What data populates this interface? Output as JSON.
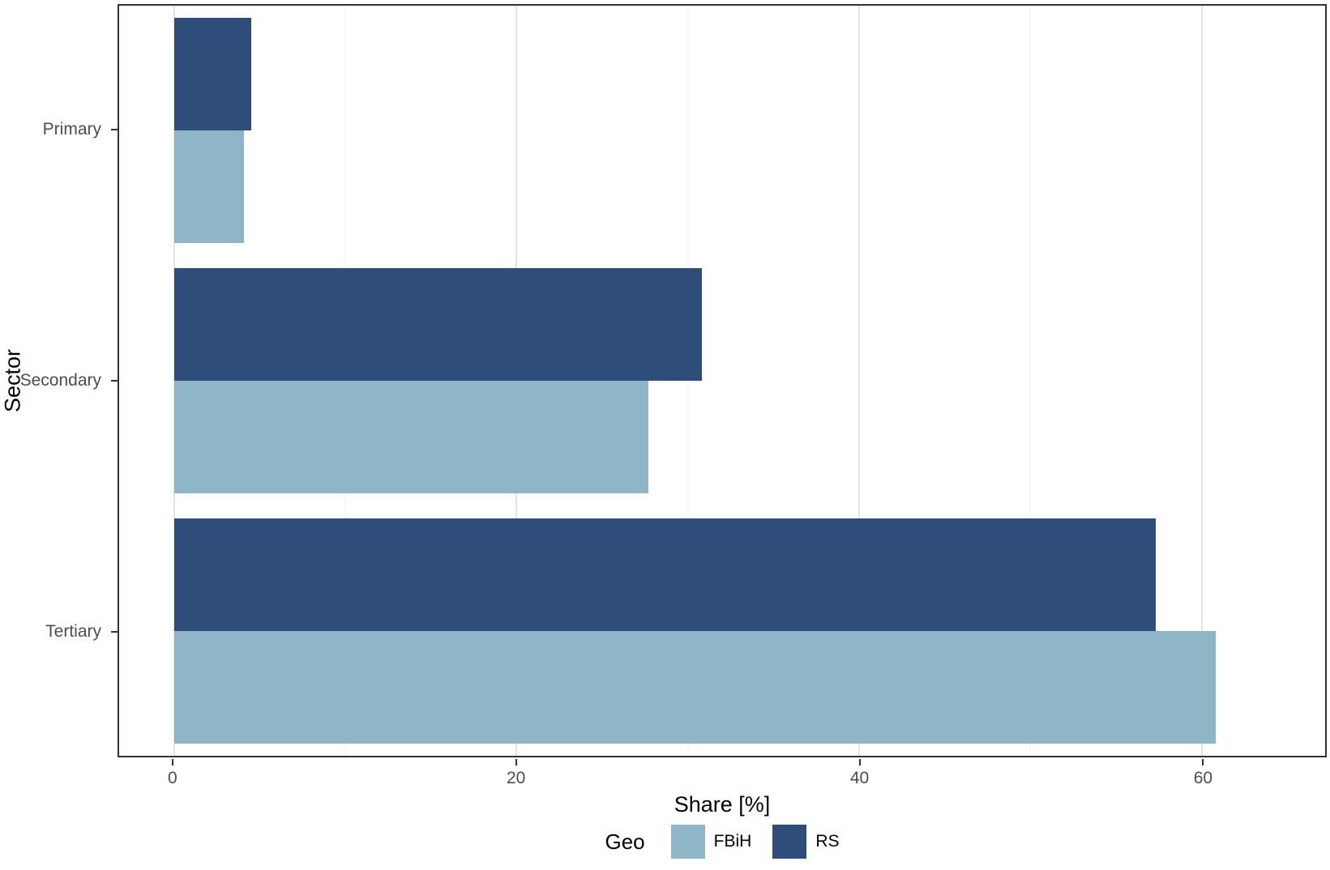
{
  "chart_data": {
    "type": "bar",
    "orientation": "horizontal",
    "title": "",
    "xlabel": "Share [%]",
    "ylabel": "Sector",
    "categories": [
      "Primary",
      "Secondary",
      "Tertiary"
    ],
    "series": [
      {
        "name": "RS",
        "color": "#2E4D7B",
        "values": [
          4.5,
          30.8,
          57.3
        ]
      },
      {
        "name": "FBiH",
        "color": "#8EB6C6",
        "values": [
          4.1,
          27.7,
          60.8
        ]
      }
    ],
    "series_order_top_to_bottom": [
      "RS",
      "FBiH"
    ],
    "xlim": [
      -3.2,
      67.2
    ],
    "xticks": [
      0,
      20,
      40,
      60
    ],
    "xticks_minor": [
      10,
      30,
      50
    ],
    "grid": true,
    "legend": {
      "title": "Geo",
      "position": "bottom",
      "entries": [
        "FBiH",
        "RS"
      ]
    }
  },
  "colors": {
    "fbih": "#8EB6C6",
    "rs": "#2E4D7B",
    "grid_major": "#e4e4e4",
    "grid_minor": "#f1f1f1",
    "panel_border": "#333333",
    "tick_label": "#4d4d4d",
    "axis_title": "#000000",
    "background": "#ffffff"
  }
}
